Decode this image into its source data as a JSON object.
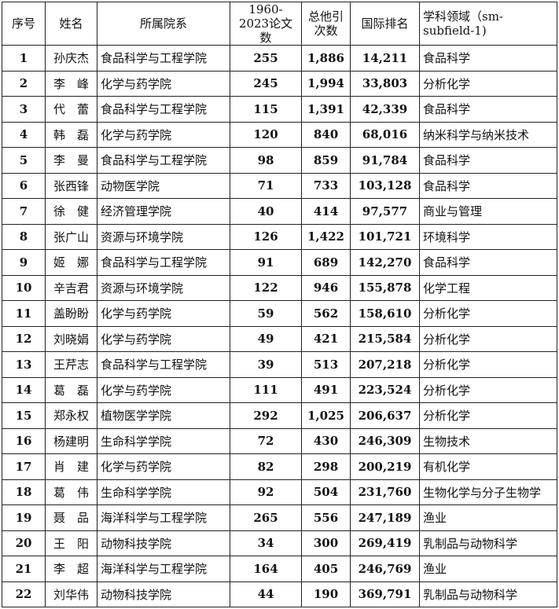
{
  "headers": [
    "序号",
    "姓名",
    "所属院系",
    "1960-2023论文数",
    "总他引次数",
    "国际排名",
    "学科领域（sm-subfield-1)"
  ],
  "header_lines": [
    [
      "序号"
    ],
    [
      "姓名"
    ],
    [
      "所属院系"
    ],
    [
      "1960-2023",
      "论文数"
    ],
    [
      "总他引",
      "次数"
    ],
    [
      "国际排名"
    ],
    [
      "学科领域（sm-",
      "subfield-1)"
    ]
  ],
  "rows": [
    [
      "1",
      "孙庆杰",
      "食品科学与工程学院",
      "255",
      "1,886",
      "14,211",
      "食品科学"
    ],
    [
      "2",
      "李　峰",
      "化学与药学院",
      "245",
      "1,994",
      "33,803",
      "分析化学"
    ],
    [
      "3",
      "代　蕾",
      "食品科学与工程学院",
      "115",
      "1,391",
      "42,339",
      "食品科学"
    ],
    [
      "4",
      "韩　磊",
      "化学与药学院",
      "120",
      "840",
      "68,016",
      "纳米科学与纳米技术"
    ],
    [
      "5",
      "李　曼",
      "食品科学与工程学院",
      "98",
      "859",
      "91,784",
      "食品科学"
    ],
    [
      "6",
      "张西锋",
      "动物医学院",
      "71",
      "733",
      "103,128",
      "食品科学"
    ],
    [
      "7",
      "徐　健",
      "经济管理学院",
      "40",
      "414",
      "97,577",
      "商业与管理"
    ],
    [
      "8",
      "张广山",
      "资源与环境学院",
      "126",
      "1,422",
      "101,721",
      "环境科学"
    ],
    [
      "9",
      "姬　娜",
      "食品科学与工程学院",
      "91",
      "689",
      "142,270",
      "食品科学"
    ],
    [
      "10",
      "辛吉君",
      "资源与环境学院",
      "122",
      "946",
      "155,878",
      "化学工程"
    ],
    [
      "11",
      "盖盼盼",
      "化学与药学院",
      "59",
      "562",
      "158,610",
      "分析化学"
    ],
    [
      "12",
      "刘晓娟",
      "化学与药学院",
      "49",
      "421",
      "215,584",
      "分析化学"
    ],
    [
      "13",
      "王芹志",
      "食品科学与工程学院",
      "39",
      "513",
      "207,218",
      "分析化学"
    ],
    [
      "14",
      "葛　磊",
      "化学与药学院",
      "111",
      "491",
      "223,524",
      "分析化学"
    ],
    [
      "15",
      "郑永权",
      "植物医学学院",
      "292",
      "1,025",
      "206,637",
      "分析化学"
    ],
    [
      "16",
      "杨建明",
      "生命科学学院",
      "72",
      "430",
      "246,309",
      "生物技术"
    ],
    [
      "17",
      "肖　建",
      "化学与药学院",
      "82",
      "298",
      "200,219",
      "有机化学"
    ],
    [
      "18",
      "葛　伟",
      "生命科学学院",
      "92",
      "504",
      "231,760",
      "生物化学与分子生物学"
    ],
    [
      "19",
      "聂　品",
      "海洋科学与工程学院",
      "265",
      "556",
      "247,189",
      "渔业"
    ],
    [
      "20",
      "王　阳",
      "动物科技学院",
      "34",
      "300",
      "269,419",
      "乳制品与动物科学"
    ],
    [
      "21",
      "李　超",
      "海洋科学与工程学院",
      "164",
      "405",
      "246,769",
      "渔业"
    ],
    [
      "22",
      "刘华伟",
      "动物科技学院",
      "44",
      "190",
      "369,791",
      "乳制品与动物科学"
    ]
  ]
}
